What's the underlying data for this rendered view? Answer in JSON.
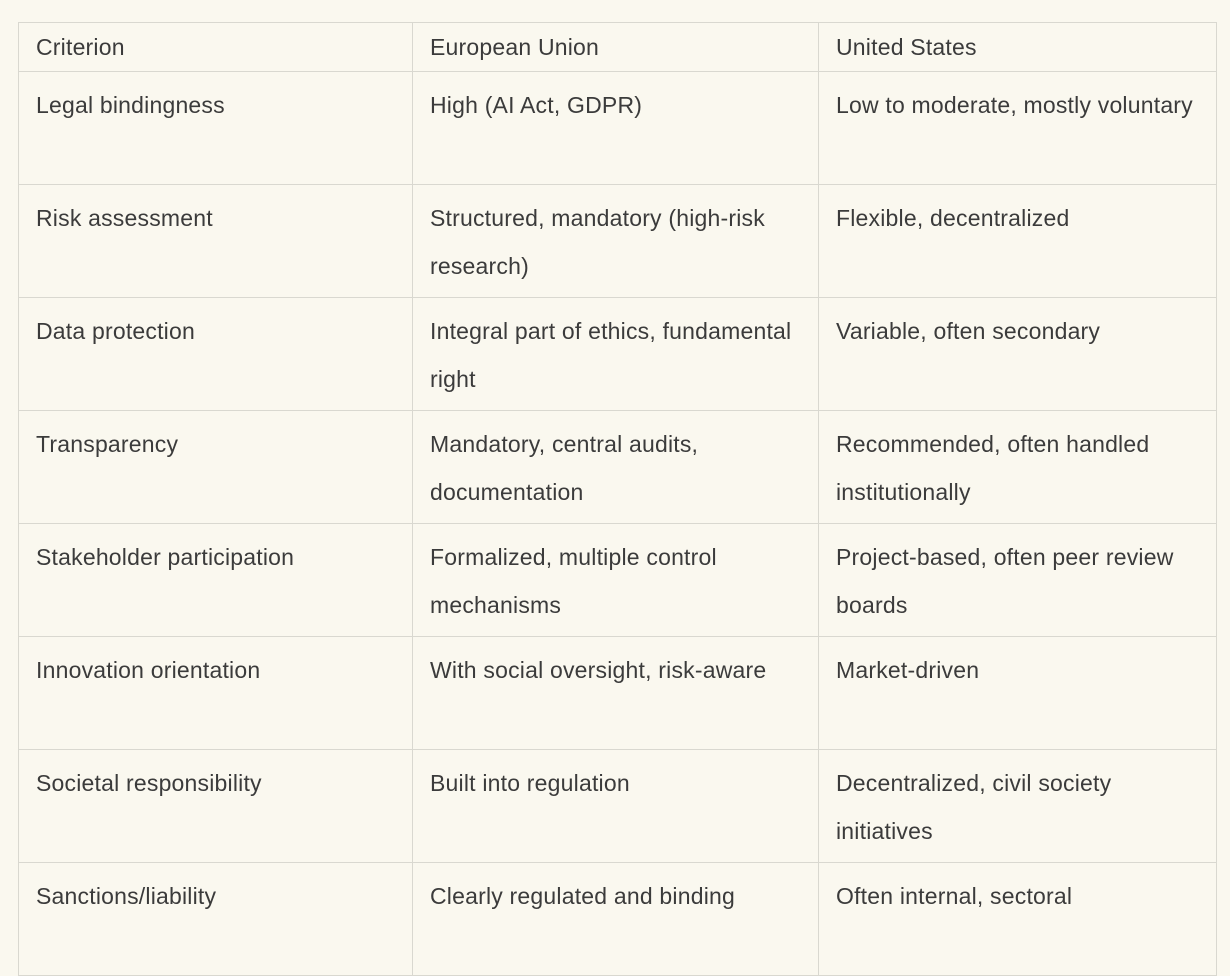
{
  "colors": {
    "page_background": "#FAF8EF",
    "cell_background": "#FAF8EF",
    "border": "#D9D8D0",
    "text": "#3B3B3B"
  },
  "chart_data": {
    "type": "table",
    "title": "",
    "columns": [
      "Criterion",
      "European Union",
      "United States"
    ],
    "rows": [
      {
        "criterion": "Legal bindingness",
        "european_union": "High (AI Act, GDPR)",
        "united_states": "Low to moderate, mostly voluntary"
      },
      {
        "criterion": "Risk assessment",
        "european_union": "Structured, mandatory (high-risk research)",
        "united_states": "Flexible, decentralized"
      },
      {
        "criterion": "Data protection",
        "european_union": "Integral part of ethics, fundamental right",
        "united_states": "Variable, often secondary"
      },
      {
        "criterion": "Transparency",
        "european_union": "Mandatory, central audits, documentation",
        "united_states": "Recommended, often handled institutionally"
      },
      {
        "criterion": "Stakeholder participation",
        "european_union": "Formalized, multiple control mechanisms",
        "united_states": "Project-based, often peer review boards"
      },
      {
        "criterion": "Innovation orientation",
        "european_union": "With social oversight, risk-aware",
        "united_states": "Market-driven"
      },
      {
        "criterion": "Societal responsibility",
        "european_union": "Built into regulation",
        "united_states": "Decentralized, civil society initiatives"
      },
      {
        "criterion": "Sanctions/liability",
        "european_union": "Clearly regulated and binding",
        "united_states": "Often internal, sectoral"
      }
    ]
  }
}
